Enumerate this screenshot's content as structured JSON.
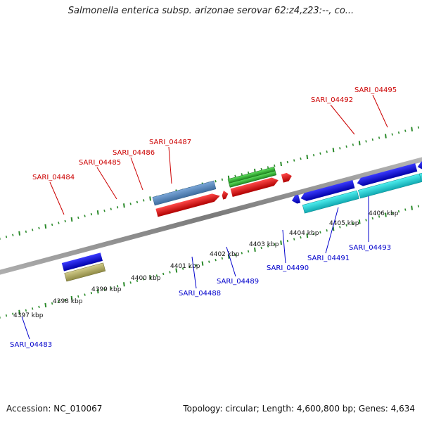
{
  "title": "Salmonella enterica subsp. arizonae serovar 62:z4,z23:--, co...",
  "footer": {
    "accession": "Accession: NC_010067",
    "topology": "Topology: circular; Length: 4,600,800 bp; Genes: 4,634"
  },
  "colors": {
    "forward_label": "#cc0000",
    "reverse_label": "#0000cc",
    "tick_forward": "#2a8a2a",
    "tick_reverse": "#2a8a2a",
    "backbone": "#8c8c8c"
  },
  "scale_labels": [
    "4397 kbp",
    "4398 kbp",
    "4399 kbp",
    "4400 kbp",
    "4401 kbp",
    "4402 kbp",
    "4403 kbp",
    "4404 kbp",
    "4405 kbp",
    "4406 kbp"
  ],
  "forward_genes": [
    {
      "label": "SARI_04484",
      "color": "#e01010"
    },
    {
      "label": "SARI_04485",
      "color": "#e01010"
    },
    {
      "label": "SARI_04486",
      "color": "#e01010"
    },
    {
      "label": "SARI_04487",
      "color": "#e01010"
    },
    {
      "label": "SARI_04492",
      "color": "#e01010"
    },
    {
      "label": "SARI_04495",
      "color": "#e01010"
    }
  ],
  "reverse_genes": [
    {
      "label": "SARI_04483",
      "color": "#1a1ad8"
    },
    {
      "label": "SARI_04488",
      "color": "#1a1ad8"
    },
    {
      "label": "SARI_04489",
      "color": "#1a1ad8"
    },
    {
      "label": "SARI_04490",
      "color": "#1a1ad8"
    },
    {
      "label": "SARI_04491",
      "color": "#1a1ad8"
    },
    {
      "label": "SARI_04493",
      "color": "#1a1ad8"
    }
  ]
}
